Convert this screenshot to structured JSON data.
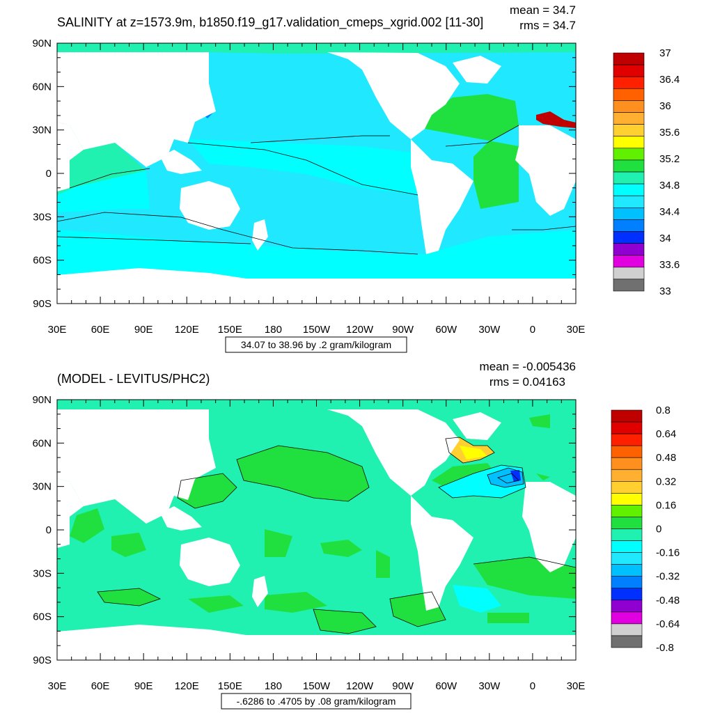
{
  "panels": [
    {
      "title": "SALINITY at z=1573.9m, b1850.f19_g17.validation_cmeps_xgrid.002 [11-30]",
      "mean_text": "mean = 34.7",
      "rms_text": "rms = 34.7",
      "info_text": "34.07 to 38.96 by .2 gram/kilogram",
      "lat_labels": [
        "90N",
        "60N",
        "30N",
        "0",
        "30S",
        "60S",
        "90S"
      ],
      "lon_labels": [
        "30E",
        "60E",
        "90E",
        "120E",
        "150E",
        "180",
        "150W",
        "120W",
        "90W",
        "60W",
        "30W",
        "0",
        "30E"
      ],
      "colorbar": {
        "colors": [
          "#c00000",
          "#e00000",
          "#ff2000",
          "#ff6000",
          "#ff9020",
          "#ffb030",
          "#ffd030",
          "#ffff00",
          "#60f000",
          "#20e040",
          "#20f0b0",
          "#00ffff",
          "#20e8ff",
          "#00c0ff",
          "#0080ff",
          "#0030ff",
          "#9000d0",
          "#e000e0",
          "#d0d0d0",
          "#707070"
        ],
        "labels": [
          "37",
          "36.4",
          "36",
          "35.6",
          "35.2",
          "34.8",
          "34.4",
          "34",
          "33.6",
          "33"
        ]
      },
      "fields": {
        "ocean_base": "#20e8ff",
        "low_lat_band": "#00ffff",
        "southern_ring": "#00ffff",
        "south_subtropic": "#20e8ff",
        "atlantic": "#20e040",
        "indian": "#20f0b0",
        "arctic": "#20f0b0",
        "med": "#c00000",
        "okhotsk": "#0080ff"
      }
    },
    {
      "title": "(MODEL - LEVITUS/PHC2)",
      "mean_text": "mean = -0.005436",
      "rms_text": "rms = 0.04163",
      "info_text": "-.6286 to .4705 by .08 gram/kilogram",
      "lat_labels": [
        "90N",
        "60N",
        "30N",
        "0",
        "30S",
        "60S",
        "90S"
      ],
      "lon_labels": [
        "30E",
        "60E",
        "90E",
        "120E",
        "150E",
        "180",
        "150W",
        "120W",
        "90W",
        "60W",
        "30W",
        "0",
        "30E"
      ],
      "colorbar": {
        "colors": [
          "#c00000",
          "#e00000",
          "#ff2000",
          "#ff6000",
          "#ff9020",
          "#ffb030",
          "#ffd030",
          "#ffff00",
          "#60f000",
          "#20e040",
          "#20f0b0",
          "#00ffff",
          "#20e8ff",
          "#00c0ff",
          "#0080ff",
          "#0030ff",
          "#9000d0",
          "#e000e0",
          "#d0d0d0",
          "#707070"
        ],
        "labels": [
          "0.8",
          "0.64",
          "0.48",
          "0.32",
          "0.16",
          "0",
          "-0.16",
          "-0.32",
          "-0.48",
          "-0.64",
          "-0.8"
        ]
      },
      "fields": {
        "ocean_base": "#20f0b0",
        "positive": "#20e040",
        "negative": "#00ffff",
        "neg_strong": "#00c0ff",
        "neg_core": "#0030ff",
        "pos_yellow": "#ffd030",
        "pos_lime": "#ffff00"
      }
    }
  ]
}
